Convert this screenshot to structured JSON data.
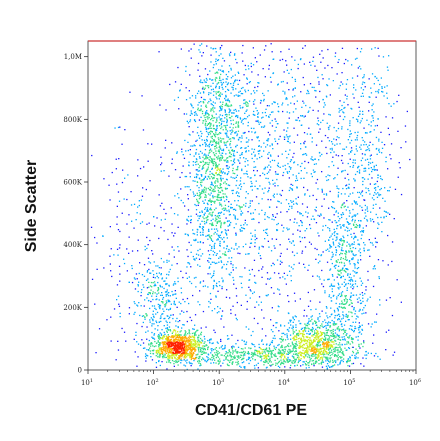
{
  "chart_data": {
    "type": "scatter",
    "style": "flow-cytometry-density-dot-plot",
    "title": "",
    "xlabel": "CD41/CD61 PE",
    "ylabel": "Side Scatter",
    "x_scale": "log",
    "xlim": [
      10,
      1000000
    ],
    "ylim": [
      0,
      1050000
    ],
    "x_ticks": [
      {
        "value": 10,
        "label": "10",
        "sup": "1"
      },
      {
        "value": 100,
        "label": "10",
        "sup": "2"
      },
      {
        "value": 1000,
        "label": "10",
        "sup": "3"
      },
      {
        "value": 10000,
        "label": "10",
        "sup": "4"
      },
      {
        "value": 100000,
        "label": "10",
        "sup": "5"
      },
      {
        "value": 1000000,
        "label": "10",
        "sup": "6"
      }
    ],
    "y_ticks": [
      {
        "value": 0,
        "label": "0"
      },
      {
        "value": 200000,
        "label": "200K"
      },
      {
        "value": 400000,
        "label": "400K"
      },
      {
        "value": 600000,
        "label": "600K"
      },
      {
        "value": 800000,
        "label": "800K"
      },
      {
        "value": 1000000,
        "label": "1,0M"
      }
    ],
    "grid": false,
    "legend": "none",
    "density_colors": [
      "#1a1aff",
      "#00aaff",
      "#33dd88",
      "#ccee22",
      "#ffaa00",
      "#ff2200"
    ],
    "populations": [
      {
        "name": "",
        "x_center": 250,
        "y_center": 55000,
        "note": "dense CD41/CD61-negative low side scatter cluster"
      },
      {
        "name": "",
        "x_center": 800,
        "y_center": 520000,
        "note": "high side scatter population"
      },
      {
        "name": "",
        "x_center": 30000,
        "y_center": 80000,
        "note": "CD41/CD61-positive population"
      }
    ]
  }
}
